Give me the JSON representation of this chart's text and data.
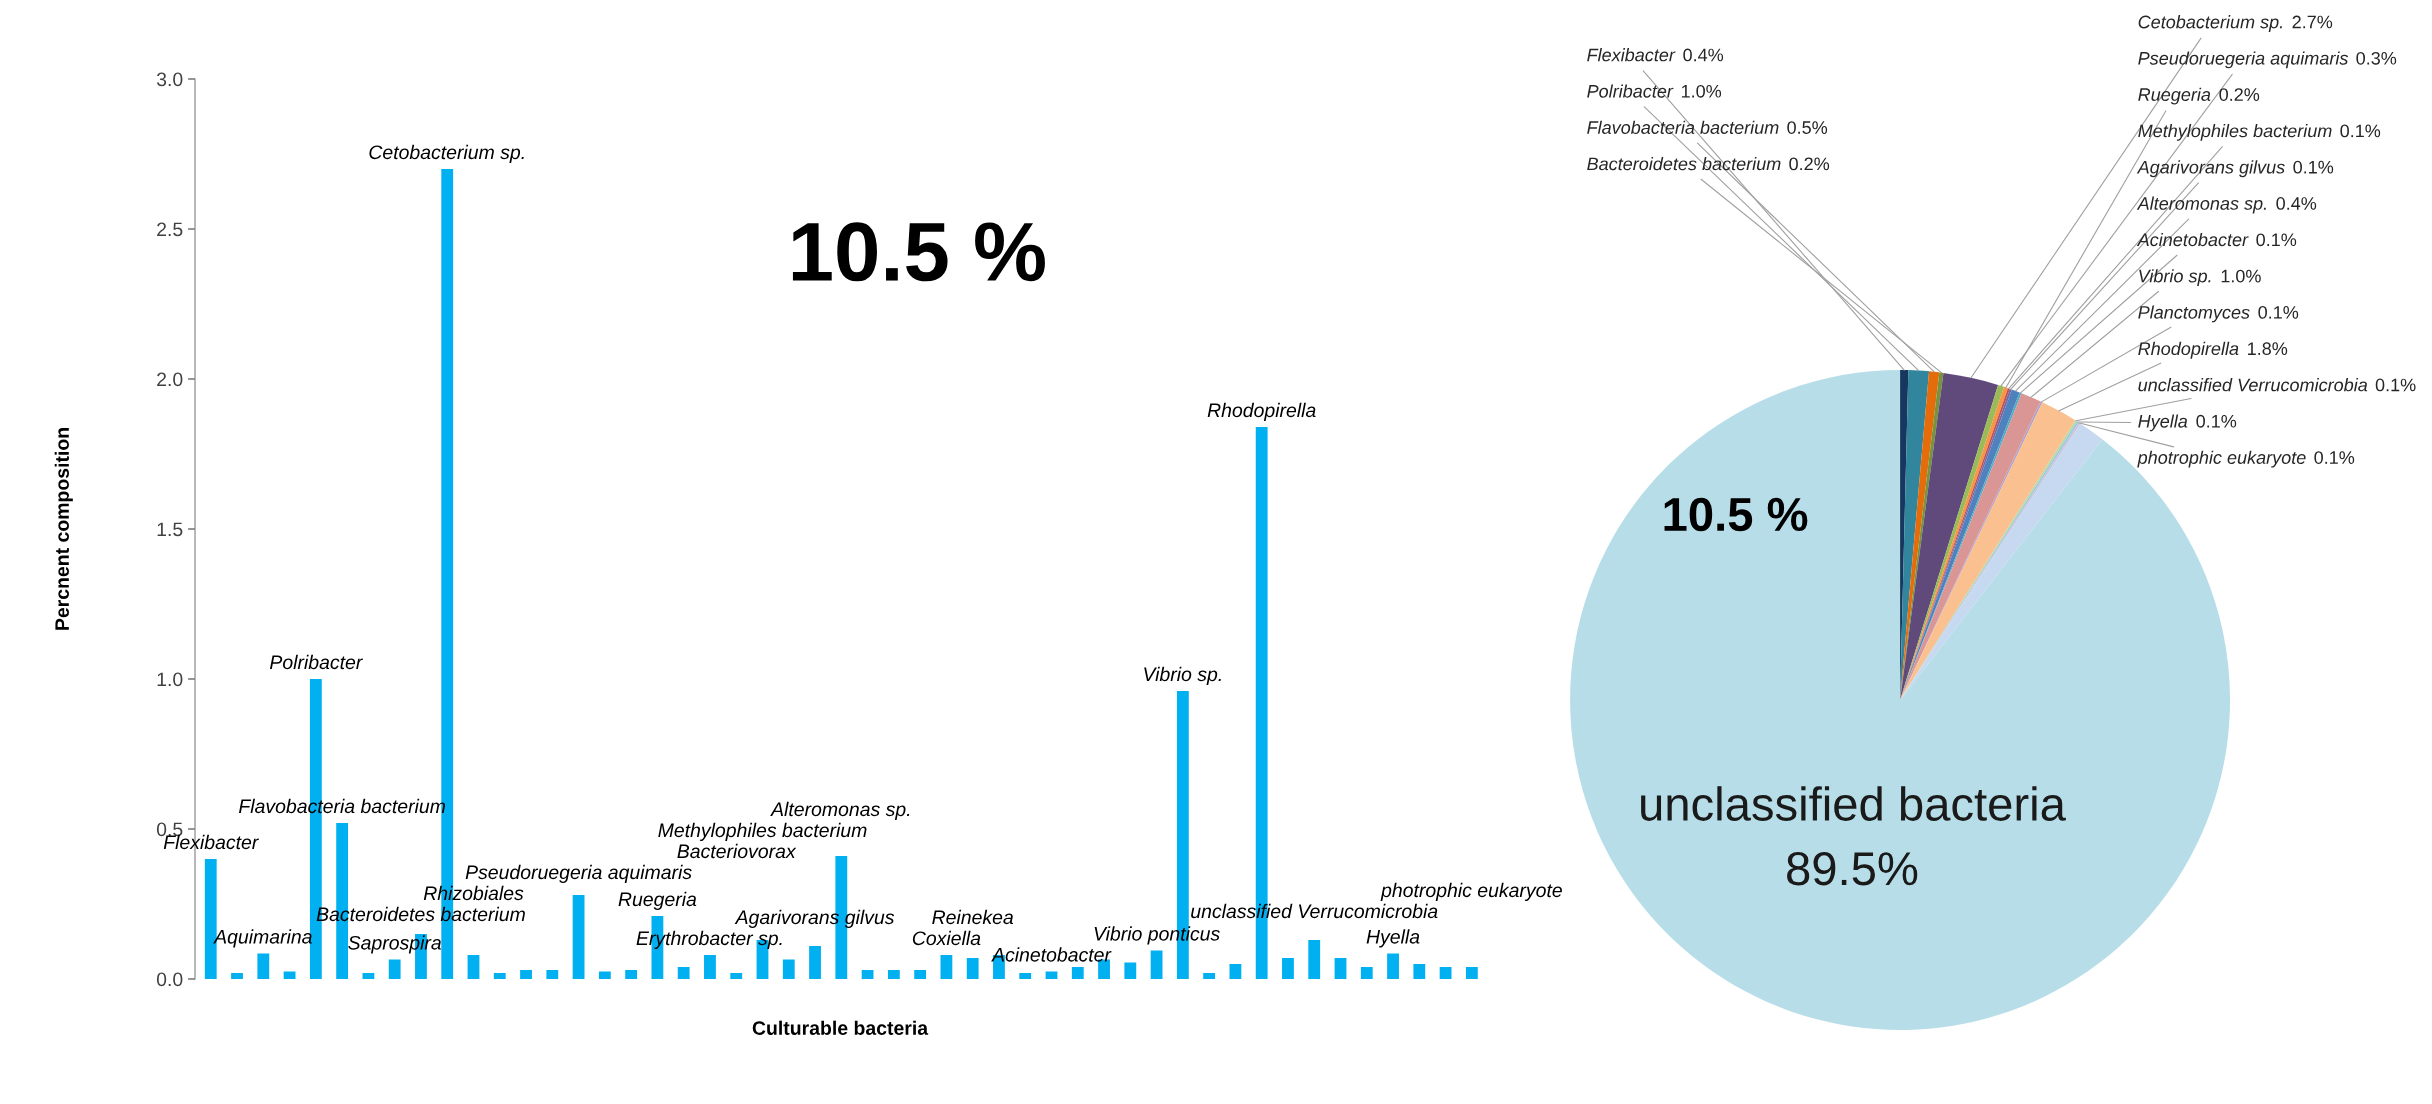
{
  "chart_data": [
    {
      "type": "bar",
      "xlabel": "Culturable bacteria",
      "ylabel": "Percnent composition",
      "color": "#00b0f0",
      "categories": [
        "Flexibacter",
        null,
        "Aquimarina",
        null,
        "Polribacter",
        "Flavobacteria bacterium",
        null,
        "Saprospira",
        "Bacteroidetes bacterium",
        "Cetobacterium sp.",
        "Rhizobiales",
        null,
        null,
        null,
        "Pseudoruegeria aquimaris",
        null,
        null,
        "Ruegeria",
        null,
        "Erythrobacter sp.",
        "Bacteriovorax",
        "Methylophiles bacterium",
        null,
        "Agarivorans gilvus",
        "Alteromonas sp.",
        null,
        null,
        null,
        "Coxiella",
        "Reinekea",
        null,
        null,
        "Acinetobacter",
        null,
        null,
        null,
        "Vibrio ponticus",
        "Vibrio sp.",
        null,
        null,
        "Rhodopirella",
        null,
        "unclassified Verrucomicrobia",
        null,
        null,
        "Hyella",
        null,
        null,
        "photrophic eukaryote"
      ],
      "values": [
        0.4,
        0.02,
        0.085,
        0.025,
        1.0,
        0.52,
        0.02,
        0.065,
        0.15,
        2.7,
        0.08,
        0.02,
        0.03,
        0.03,
        0.28,
        0.025,
        0.03,
        0.21,
        0.04,
        0.08,
        0.02,
        0.13,
        0.065,
        0.11,
        0.41,
        0.03,
        0.03,
        0.03,
        0.08,
        0.07,
        0.08,
        0.02,
        0.025,
        0.04,
        0.065,
        0.055,
        0.095,
        0.96,
        0.02,
        0.05,
        1.84,
        0.07,
        0.13,
        0.07,
        0.04,
        0.085,
        0.05,
        0.04,
        0.04
      ],
      "ylim": [
        0,
        3.0
      ],
      "yticks": [
        {
          "value": 0,
          "label": "0.0"
        },
        0.5,
        {
          "value": 1.0,
          "label": "1.0"
        },
        1.5,
        {
          "value": 2.0,
          "label": "2.0"
        },
        2.5,
        {
          "value": 3.0,
          "label": "3.0"
        }
      ],
      "annotations": [
        "10.5 %"
      ]
    },
    {
      "type": "pie",
      "categories": [
        "Flexibacter",
        "Polribacter",
        "Flavobacteria bacterium",
        "Bacteroidetes bacterium",
        "Cetobacterium sp.",
        "Pseudoruegeria aquimaris",
        "Ruegeria",
        "Methylophiles bacterium",
        "Agarivorans gilvus",
        "Alteromonas sp.",
        "Acinetobacter",
        "Vibrio sp.",
        "Planctomyces",
        "Rhodopirella",
        "unclassified Verrucomicrobia",
        "Hyella",
        "photrophic eukaryote",
        null,
        "unclassified bacteria"
      ],
      "values": [
        0.4,
        1.0,
        0.5,
        0.2,
        2.7,
        0.3,
        0.2,
        0.1,
        0.1,
        0.4,
        0.1,
        1.0,
        0.1,
        1.8,
        0.1,
        0.1,
        0.1,
        1.3,
        89.5
      ],
      "value_labels": [
        "0.4%",
        "1.0%",
        "0.5%",
        "0.2%",
        "2.7%",
        "0.3%",
        "0.2%",
        "0.1%",
        "0.1%",
        "0.4%",
        "0.1%",
        "1.0%",
        "0.1%",
        "1.8%",
        "0.1%",
        "0.1%",
        "0.1%",
        null,
        "89.5%"
      ],
      "colors": [
        "#17375e",
        "#31859c",
        "#e46c0a",
        "#77933c",
        "#604a7b",
        "#9bbb59",
        "#f79646",
        "#c0504d",
        "#8064a2",
        "#4f81bd",
        "#4bacc6",
        "#d99694",
        "#b3a2c7",
        "#fac090",
        "#c3d69b",
        "#93cddd",
        "#ccc1da",
        "#c6d9f1",
        "#b7dee8"
      ],
      "annotations": [
        "10.5 %"
      ]
    }
  ]
}
